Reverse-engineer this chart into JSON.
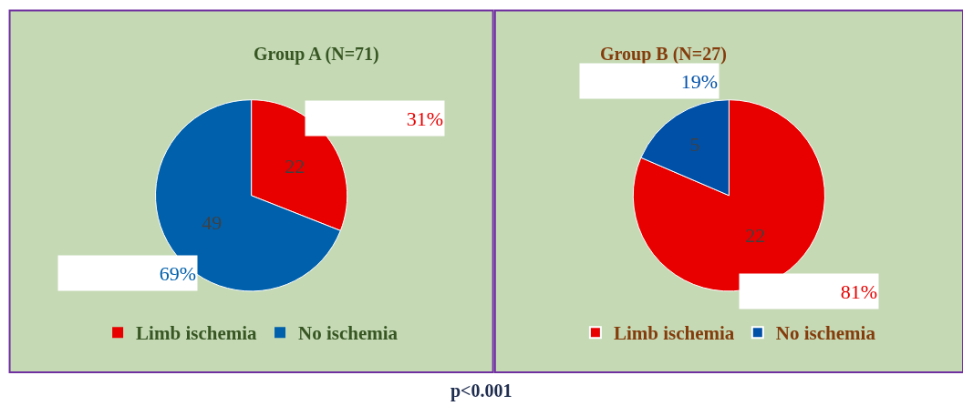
{
  "chart_data": [
    {
      "type": "pie",
      "title": "Group A (N=71)",
      "categories": [
        "Limb ischemia",
        "No ischemia"
      ],
      "values": [
        22,
        49
      ],
      "colors": [
        "#e80000",
        "#0060ac"
      ],
      "data_labels": true,
      "annotations": [
        "31%",
        "69%"
      ],
      "legend": "bottom"
    },
    {
      "type": "pie",
      "title": "Group B (N=27)",
      "categories": [
        "Limb ischemia",
        "No ischemia"
      ],
      "values": [
        22,
        5
      ],
      "colors": [
        "#e80000",
        "#0050a8"
      ],
      "data_labels": true,
      "annotations": [
        "81%",
        "19%"
      ],
      "legend": "bottom"
    },
    {
      "type": "other",
      "annotations": [
        "p<0.001"
      ]
    }
  ]
}
